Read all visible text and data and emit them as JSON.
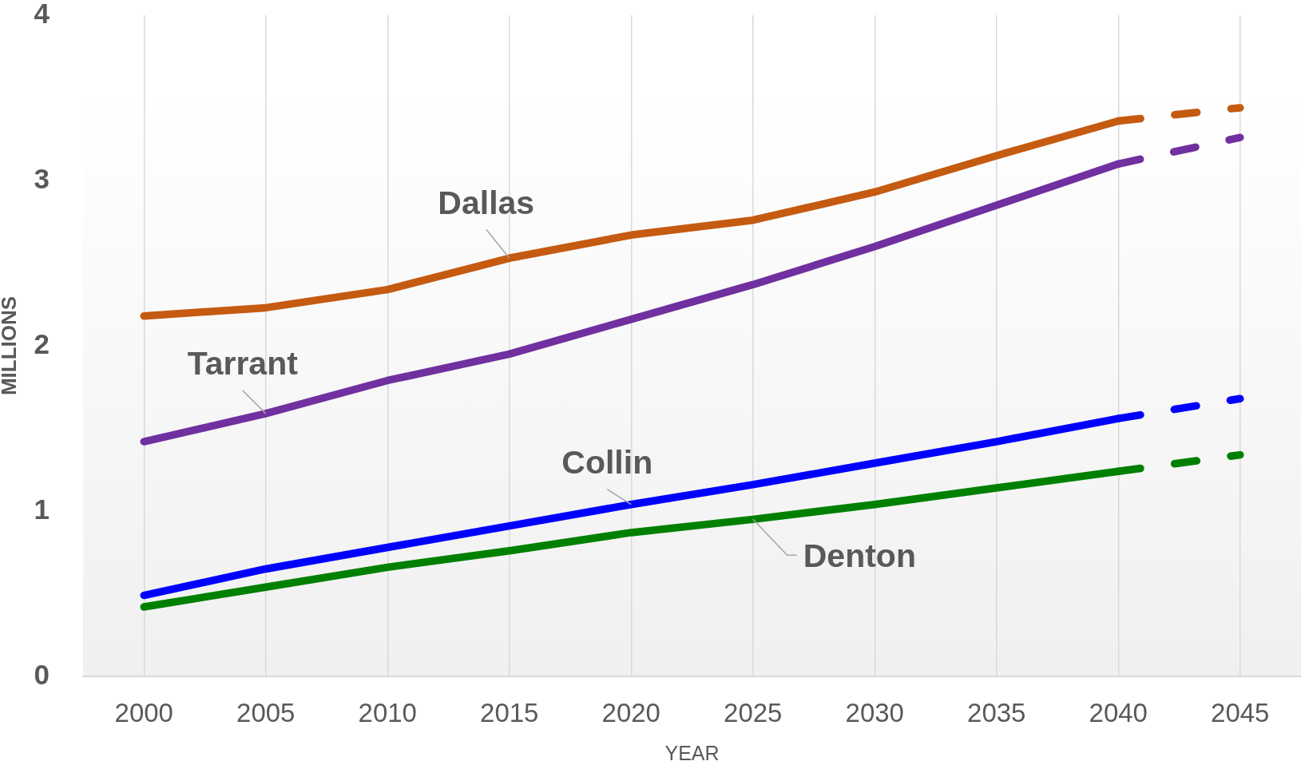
{
  "chart_data": {
    "type": "line",
    "xlabel": "YEAR",
    "ylabel": "MILLIONS",
    "categories": [
      "2000",
      "2005",
      "2010",
      "2015",
      "2020",
      "2025",
      "2030",
      "2035",
      "2040",
      "2045"
    ],
    "ylim": [
      0,
      4
    ],
    "yticks": [
      0,
      1,
      2,
      3,
      4
    ],
    "grid": "x",
    "marker": "none",
    "line_style": "solid",
    "series": [
      {
        "name": "Dallas",
        "color": "#c55a11",
        "values": [
          2.18,
          2.23,
          2.34,
          2.53,
          2.67,
          2.76,
          2.93,
          3.15,
          3.36,
          null
        ]
      },
      {
        "name": "Tarrant",
        "color": "#7030a0",
        "values": [
          1.42,
          1.59,
          1.79,
          1.95,
          2.16,
          2.37,
          2.6,
          2.85,
          3.1,
          null
        ]
      },
      {
        "name": "Collin",
        "color": "#0000ff",
        "values": [
          0.49,
          0.65,
          0.78,
          0.91,
          1.04,
          1.16,
          1.29,
          1.42,
          1.56,
          null
        ]
      },
      {
        "name": "Denton",
        "color": "#008000",
        "values": [
          0.42,
          0.54,
          0.66,
          0.76,
          0.87,
          0.95,
          1.04,
          1.14,
          1.24,
          null
        ]
      },
      {
        "color": "#c55a11",
        "line_style": "dashed",
        "values": [
          null,
          null,
          null,
          null,
          null,
          null,
          null,
          null,
          3.36,
          3.44
        ]
      },
      {
        "color": "#7030a0",
        "line_style": "dashed",
        "values": [
          null,
          null,
          null,
          null,
          null,
          null,
          null,
          null,
          3.1,
          3.26
        ]
      },
      {
        "color": "#0000ff",
        "line_style": "dashed",
        "values": [
          null,
          null,
          null,
          null,
          null,
          null,
          null,
          null,
          1.56,
          1.68
        ]
      },
      {
        "color": "#008000",
        "line_style": "dashed",
        "values": [
          null,
          null,
          null,
          null,
          null,
          null,
          null,
          null,
          1.24,
          1.34
        ]
      }
    ]
  }
}
